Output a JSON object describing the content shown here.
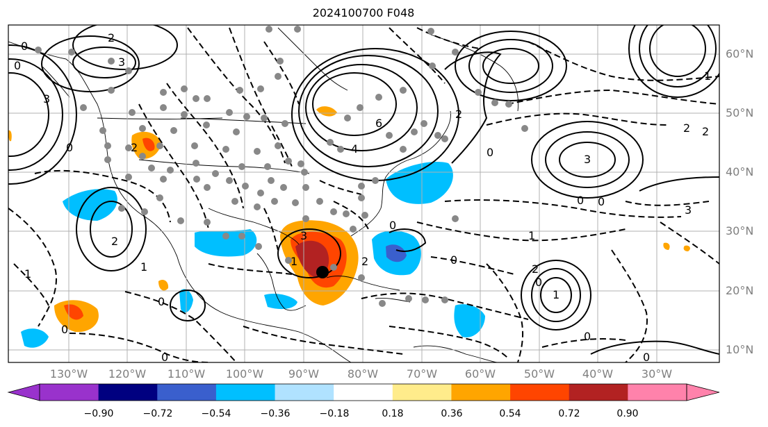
{
  "title": "2024100700 F048",
  "latitude_labels": [
    "60°N",
    "50°N",
    "40°N",
    "30°N",
    "20°N",
    "10°N"
  ],
  "longitude_labels": [
    "130°W",
    "120°W",
    "110°W",
    "100°W",
    "90°W",
    "80°W",
    "70°W",
    "60°W",
    "50°W",
    "40°W",
    "30°W"
  ],
  "colorbar": {
    "colors": [
      "#9932cc",
      "#000080",
      "#3a5fcd",
      "#00bfff",
      "#b0e2ff",
      "#ffffff",
      "#ffec8b",
      "#ffa500",
      "#ff4500",
      "#b22222",
      "#ff82ab"
    ],
    "extend_min_color": "#9932cc",
    "extend_max_color": "#ff82ab",
    "tick_labels": [
      "−0.90",
      "−0.72",
      "−0.54",
      "−0.36",
      "−0.18",
      "0.18",
      "0.36",
      "0.54",
      "0.72",
      "0.90"
    ]
  },
  "contour_labels": [
    "0",
    "2",
    "3",
    "0",
    "1",
    "2",
    "1",
    "2",
    "0",
    "1",
    "2",
    "3",
    "6",
    "4",
    "2",
    "0",
    "1",
    "3",
    "2",
    "0",
    "0",
    "3",
    "0",
    "1",
    "2",
    "1",
    "0",
    "0",
    "0",
    "0",
    "0",
    "3",
    "2",
    "0",
    "0"
  ],
  "marked_point": {
    "lat": 23.5,
    "lon": -86.5
  },
  "colors": {
    "grid": "#b0b0b0",
    "coast": "#000000",
    "axis_text": "#7f7f7f"
  }
}
